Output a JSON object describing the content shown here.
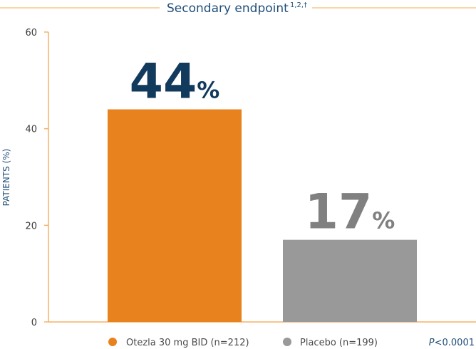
{
  "chart_data": {
    "type": "bar",
    "title": "Secondary endpoint",
    "title_superscript": "1,2,†",
    "ylabel": "PATIENTS (%)",
    "ylim": [
      0,
      60
    ],
    "yticks": [
      0,
      20,
      40,
      60
    ],
    "categories": [
      "Otezla 30 mg BID (n=212)",
      "Placebo (n=199)"
    ],
    "values": [
      44,
      17
    ],
    "value_suffix": "%",
    "colors": [
      "#e8821f",
      "#999999"
    ],
    "value_label_colors": [
      "#123a5c",
      "#808080"
    ],
    "legend": [
      {
        "label": "Otezla 30 mg BID (n=212)",
        "color": "#e8821f"
      },
      {
        "label": "Placebo (n=199)",
        "color": "#999999"
      }
    ],
    "legend_placement": "bottom",
    "p_value": {
      "prefix": "P",
      "rest": "<0.0001"
    },
    "grid": false
  }
}
